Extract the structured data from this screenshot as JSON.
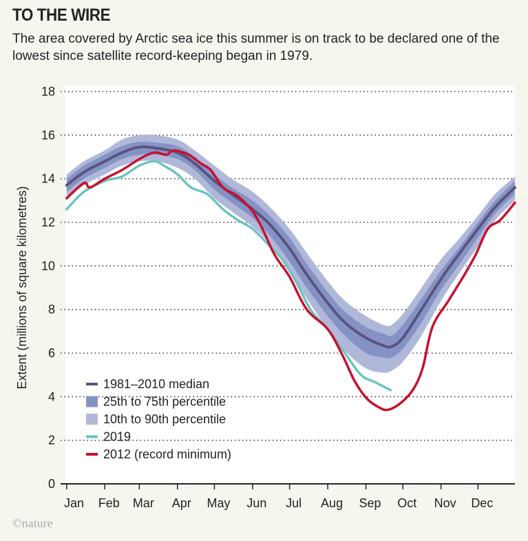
{
  "header": {
    "title": "TO THE WIRE",
    "subtitle": "The area covered by Arctic sea ice this summer is on track to be declared one of the lowest since satellite record-keeping began in 1979."
  },
  "credit": "©nature",
  "chart_data": {
    "type": "line",
    "xlabel": "",
    "ylabel": "Extent (millions of square kilometres)",
    "ylim": [
      0,
      18
    ],
    "yticks": [
      0,
      2,
      4,
      6,
      8,
      10,
      12,
      14,
      16,
      18
    ],
    "xlim_day_of_year": [
      0,
      365
    ],
    "xticks": [
      {
        "label": "Jan",
        "day": 1
      },
      {
        "label": "Feb",
        "day": 32
      },
      {
        "label": "Mar",
        "day": 60
      },
      {
        "label": "Apr",
        "day": 91
      },
      {
        "label": "May",
        "day": 121
      },
      {
        "label": "Jun",
        "day": 152
      },
      {
        "label": "Jul",
        "day": 182
      },
      {
        "label": "Aug",
        "day": 213
      },
      {
        "label": "Sep",
        "day": 244
      },
      {
        "label": "Oct",
        "day": 274
      },
      {
        "label": "Nov",
        "day": 305
      },
      {
        "label": "Dec",
        "day": 335
      }
    ],
    "grid": "horizontal dotted",
    "legend_placement": "bottom-left",
    "colors": {
      "median": "#5b5280",
      "p25_75": "#8593c4",
      "p10_90": "#b0b8da",
      "y2019": "#6cc4c0",
      "y2012": "#c8102e"
    },
    "legend": [
      "1981–2010 median",
      "25th to 75th percentile",
      "10th to 90th percentile",
      "2019",
      "2012 (record minimum)"
    ],
    "climatology": {
      "day": [
        1,
        15,
        32,
        46,
        60,
        74,
        91,
        105,
        121,
        135,
        152,
        166,
        182,
        196,
        213,
        227,
        244,
        258,
        265,
        274,
        288,
        305,
        319,
        335,
        349,
        365
      ],
      "median": [
        13.7,
        14.3,
        14.8,
        15.2,
        15.45,
        15.4,
        15.2,
        14.7,
        13.9,
        13.3,
        12.6,
        11.9,
        10.8,
        9.6,
        8.3,
        7.4,
        6.7,
        6.35,
        6.3,
        6.7,
        7.9,
        9.4,
        10.5,
        11.7,
        12.7,
        13.6
      ],
      "p25": [
        13.4,
        14.0,
        14.5,
        14.9,
        15.1,
        15.1,
        14.9,
        14.4,
        13.5,
        12.9,
        12.2,
        11.4,
        10.2,
        9.0,
        7.7,
        6.8,
        6.0,
        5.8,
        5.8,
        6.2,
        7.3,
        8.9,
        10.0,
        11.3,
        12.4,
        13.3
      ],
      "p75": [
        14.0,
        14.6,
        15.1,
        15.5,
        15.7,
        15.65,
        15.5,
        15.0,
        14.2,
        13.6,
        13.0,
        12.3,
        11.3,
        10.1,
        8.8,
        7.9,
        7.2,
        6.9,
        6.8,
        7.3,
        8.4,
        9.8,
        10.8,
        12.0,
        13.0,
        13.9
      ],
      "p10": [
        13.1,
        13.7,
        14.2,
        14.6,
        14.8,
        14.8,
        14.5,
        14.0,
        13.1,
        12.5,
        11.8,
        11.0,
        9.8,
        8.5,
        7.1,
        6.1,
        5.3,
        5.1,
        5.2,
        5.6,
        6.7,
        8.4,
        9.6,
        10.9,
        12.1,
        13.0
      ],
      "p90": [
        14.2,
        14.8,
        15.3,
        15.8,
        16.0,
        16.0,
        15.8,
        15.3,
        14.6,
        14.0,
        13.4,
        12.7,
        11.7,
        10.6,
        9.3,
        8.4,
        7.7,
        7.3,
        7.3,
        7.8,
        8.9,
        10.3,
        11.2,
        12.3,
        13.3,
        14.1
      ]
    },
    "series_2019": {
      "day": [
        1,
        15,
        32,
        46,
        60,
        72,
        80,
        91,
        102,
        115,
        128,
        140,
        152,
        166,
        176,
        188,
        199,
        213,
        227,
        240,
        252,
        264
      ],
      "values": [
        12.6,
        13.4,
        13.9,
        14.1,
        14.6,
        14.8,
        14.6,
        14.2,
        13.6,
        13.3,
        12.6,
        12.1,
        11.7,
        10.9,
        10.3,
        9.2,
        8.0,
        7.1,
        6.0,
        5.0,
        4.65,
        4.3
      ]
    },
    "series_2012": {
      "day": [
        1,
        15,
        20,
        32,
        46,
        60,
        72,
        82,
        88,
        100,
        110,
        118,
        128,
        140,
        152,
        160,
        170,
        182,
        196,
        213,
        225,
        235,
        245,
        255,
        262,
        272,
        282,
        290,
        298,
        311,
        323,
        333,
        343,
        353,
        365
      ],
      "values": [
        13.1,
        13.8,
        13.6,
        14.0,
        14.4,
        14.9,
        15.2,
        15.1,
        15.3,
        15.1,
        14.7,
        14.4,
        13.6,
        13.2,
        12.5,
        11.7,
        10.5,
        9.5,
        8.0,
        7.1,
        5.9,
        4.7,
        3.9,
        3.5,
        3.4,
        3.7,
        4.3,
        5.3,
        7.2,
        8.4,
        9.5,
        10.5,
        11.7,
        12.1,
        12.9
      ]
    }
  }
}
